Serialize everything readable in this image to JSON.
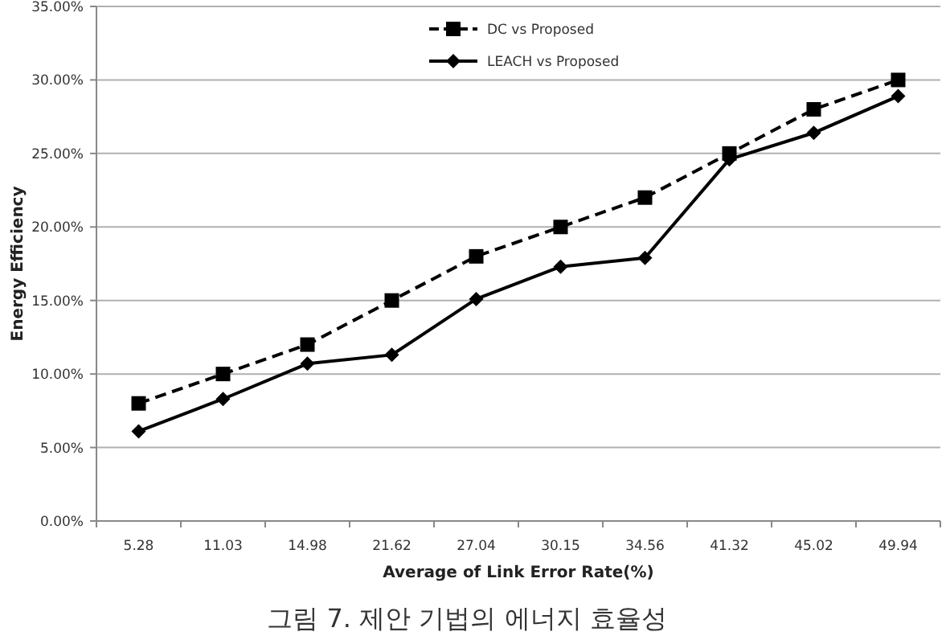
{
  "chart_data": {
    "type": "line",
    "xlabel": "Average of Link Error Rate(%)",
    "ylabel": "Energy Efficiency",
    "annotations": [
      "그림 7. 제안 기법의 에너지 효율성"
    ],
    "categories": [
      "5.28",
      "11.03",
      "14.98",
      "21.62",
      "27.04",
      "30.15",
      "34.56",
      "41.32",
      "45.02",
      "49.94"
    ],
    "series": [
      {
        "name": "DC vs Proposed",
        "color": "#000000",
        "marker": "square",
        "line_style": "dashed",
        "values": [
          8,
          10,
          12,
          15,
          18,
          20,
          22,
          25,
          28,
          30
        ]
      },
      {
        "name": "LEACH vs Proposed",
        "color": "#000000",
        "marker": "diamond",
        "line_style": "solid",
        "values": [
          6.1,
          8.3,
          10.7,
          11.3,
          15.1,
          17.3,
          17.9,
          24.6,
          26.4,
          28.9
        ]
      }
    ],
    "ylim": [
      0,
      35
    ],
    "yticks": [
      {
        "value": 0,
        "label": "0.00%"
      },
      {
        "value": 5,
        "label": "5.00%"
      },
      {
        "value": 10,
        "label": "10.00%"
      },
      {
        "value": 15,
        "label": "15.00%"
      },
      {
        "value": 20,
        "label": "20.00%"
      },
      {
        "value": 25,
        "label": "25.00%"
      },
      {
        "value": 30,
        "label": "30.00%"
      },
      {
        "value": 35,
        "label": "35.00%"
      }
    ],
    "grid": "y",
    "legend": "top"
  }
}
